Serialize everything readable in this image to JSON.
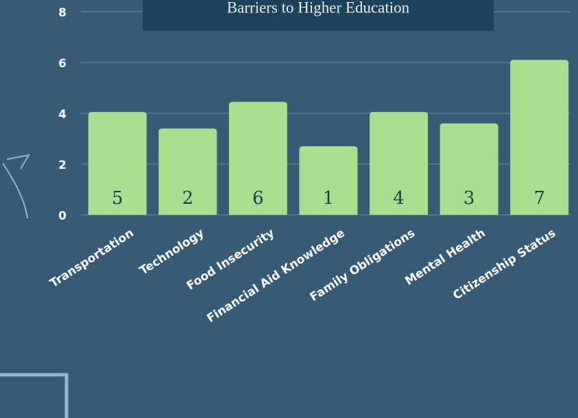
{
  "chart_data": {
    "type": "bar",
    "title": "Barriers to Higher Education",
    "categories": [
      "Transportation",
      "Technology",
      "Food Insecurity",
      "Financial Aid Knowledge",
      "Family Obligations",
      "Mental Health",
      "Citizenship Status"
    ],
    "values": [
      4.05,
      3.4,
      4.45,
      2.7,
      4.05,
      3.6,
      6.1
    ],
    "ranks": [
      5,
      2,
      6,
      1,
      4,
      3,
      7
    ],
    "color": "#a8de8e",
    "ylim": [
      0,
      8
    ],
    "yticks": [
      0,
      2,
      4,
      6,
      8
    ],
    "grid": true
  }
}
